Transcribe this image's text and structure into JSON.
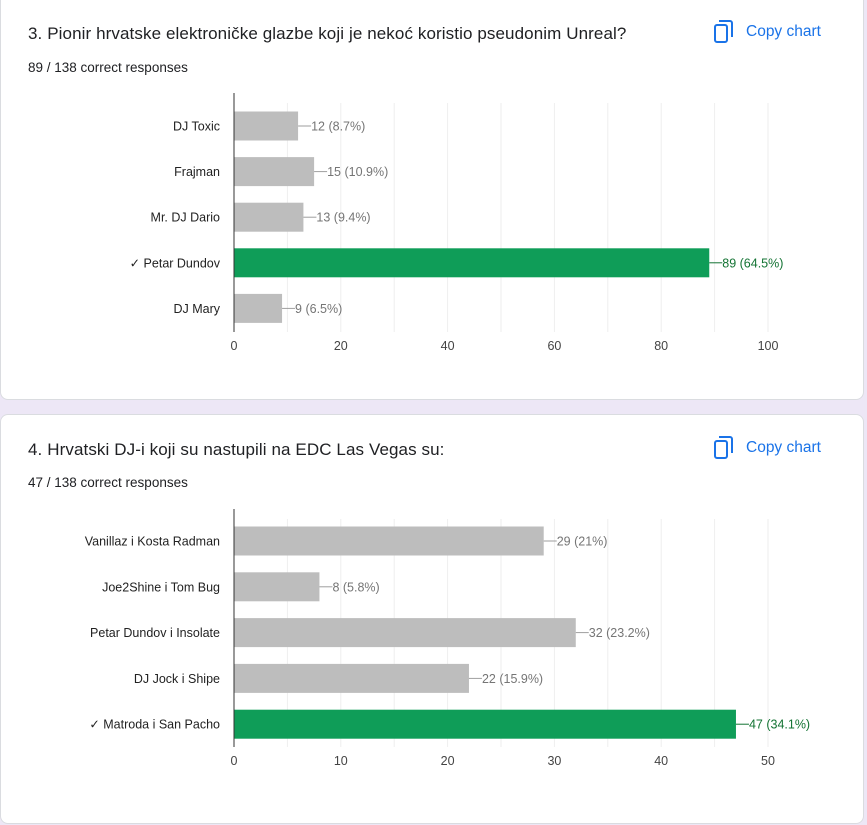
{
  "copy_label": "Copy chart",
  "colors": {
    "bar": "#bdbdbd",
    "correct": "#0f9d58",
    "correct_label": "#137333",
    "label": "#757575",
    "link": "#1a73e8"
  },
  "questions": [
    {
      "title": "3. Pionir hrvatske elektroničke glazbe koji je nekoć koristio pseudonim Unreal?",
      "summary": "89 / 138 correct responses",
      "chart_data": {
        "type": "bar",
        "orientation": "horizontal",
        "categories": [
          "DJ Toxic",
          "Frajman",
          "Mr. DJ Dario",
          "✓ Petar Dundov",
          "DJ Mary"
        ],
        "values": [
          12,
          15,
          13,
          89,
          9
        ],
        "data_labels": [
          "12 (8.7%)",
          "15 (10.9%)",
          "13 (9.4%)",
          "89 (64.5%)",
          "9 (6.5%)"
        ],
        "correct_index": 3,
        "xlim": [
          0,
          100
        ],
        "xticks": [
          0,
          20,
          40,
          60,
          80,
          100
        ],
        "grid": true
      }
    },
    {
      "title": "4. Hrvatski DJ-i koji su nastupili na EDC Las Vegas su:",
      "summary": "47 / 138 correct responses",
      "chart_data": {
        "type": "bar",
        "orientation": "horizontal",
        "categories": [
          "Vanillaz i Kosta Radman",
          "Joe2Shine i Tom Bug",
          "Petar Dundov i Insolate",
          "DJ Jock i Shipe",
          "✓ Matroda i San Pacho"
        ],
        "values": [
          29,
          8,
          32,
          22,
          47
        ],
        "data_labels": [
          "29 (21%)",
          "8 (5.8%)",
          "32 (23.2%)",
          "22 (15.9%)",
          "47 (34.1%)"
        ],
        "correct_index": 4,
        "xlim": [
          0,
          50
        ],
        "xticks": [
          0,
          10,
          20,
          30,
          40,
          50
        ],
        "grid": true
      }
    }
  ]
}
